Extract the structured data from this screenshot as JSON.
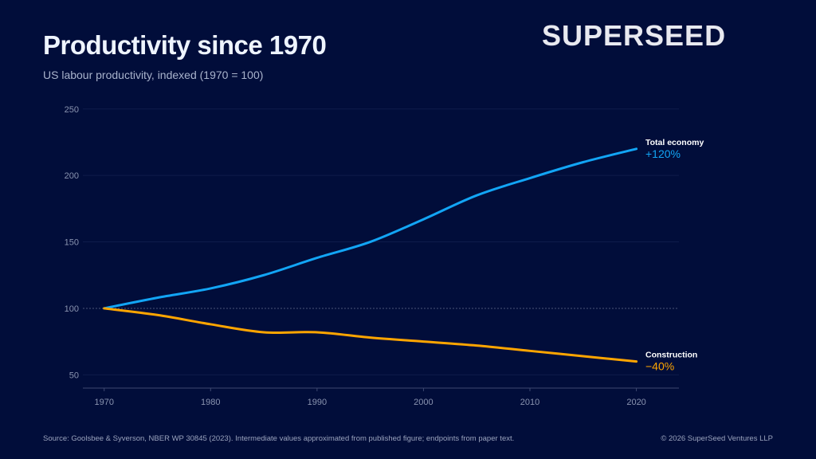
{
  "header": {
    "title": "Productivity since 1970",
    "subtitle": "US labour productivity, indexed (1970 = 100)",
    "logo": "SUPERSEED"
  },
  "footer": {
    "source": "Source: Goolsbee & Syverson, NBER WP 30845 (2023). Intermediate values approximated from published figure; endpoints from paper text.",
    "copyright": "© 2026 SuperSeed Ventures LLP"
  },
  "colors": {
    "background": "#010d3a",
    "total": "#12a5f5",
    "construction": "#ffa500"
  },
  "chart_data": {
    "type": "line",
    "title": "Productivity since 1970",
    "subtitle": "US labour productivity, indexed (1970 = 100)",
    "xlabel": "",
    "ylabel": "",
    "xlim": [
      1968,
      2024
    ],
    "ylim": [
      40,
      250
    ],
    "x_ticks": [
      1970,
      1980,
      1990,
      2000,
      2010,
      2020
    ],
    "y_ticks": [
      50,
      100,
      150,
      200,
      250
    ],
    "grid": true,
    "reference_line": 100,
    "x": [
      1970,
      1975,
      1980,
      1985,
      1990,
      1995,
      2000,
      2005,
      2010,
      2015,
      2020
    ],
    "series": [
      {
        "name": "Total economy",
        "end_label": "+120%",
        "color": "#12a5f5",
        "values": [
          100,
          108,
          115,
          125,
          138,
          150,
          167,
          185,
          198,
          210,
          220
        ]
      },
      {
        "name": "Construction",
        "end_label": "−40%",
        "color": "#ffa500",
        "values": [
          100,
          95,
          88,
          82,
          82,
          78,
          75,
          72,
          68,
          64,
          60
        ]
      }
    ]
  }
}
